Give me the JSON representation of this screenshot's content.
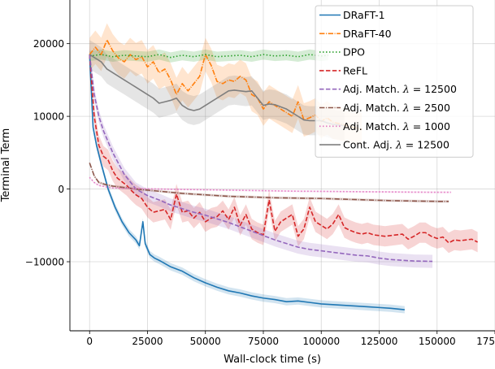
{
  "chart_data": {
    "type": "line",
    "xlabel": "Wall-clock time (s)",
    "ylabel": "Terminal Term",
    "xlim": [
      -8500,
      175000
    ],
    "ylim": [
      -19500,
      26000
    ],
    "xticks": [
      0,
      25000,
      50000,
      75000,
      100000,
      125000,
      150000,
      175000
    ],
    "xtick_labels": [
      "0",
      "25000",
      "50000",
      "75000",
      "100000",
      "125000",
      "150000",
      "175000"
    ],
    "yticks": [
      -10000,
      0,
      10000,
      20000
    ],
    "ytick_labels": [
      "−10000",
      "0",
      "10000",
      "20000"
    ],
    "grid": true,
    "legend_position": "top-right",
    "series": [
      {
        "name": "DRaFT-1",
        "color": "#1f77b4",
        "dash": "solid",
        "x": [
          0,
          1500,
          3000,
          5000,
          8000,
          11000,
          14000,
          17000,
          20000,
          21500,
          23000,
          24000,
          26000,
          28000,
          30000,
          35000,
          40000,
          45000,
          50000,
          55000,
          60000,
          65000,
          70000,
          75000,
          80000,
          85000,
          90000,
          95000,
          100000,
          105000,
          110000,
          115000,
          120000,
          125000,
          130000,
          136000
        ],
        "y": [
          18500,
          8500,
          6000,
          3500,
          0,
          -2500,
          -4500,
          -6000,
          -7000,
          -7800,
          -4500,
          -7500,
          -9000,
          -9500,
          -9800,
          -10700,
          -11300,
          -12200,
          -12900,
          -13500,
          -14000,
          -14300,
          -14700,
          -15000,
          -15200,
          -15500,
          -15400,
          -15600,
          -15800,
          -15900,
          -16000,
          -16100,
          -16200,
          -16300,
          -16400,
          -16600
        ],
        "band": 500
      },
      {
        "name": "DRaFT-40",
        "color": "#ff7f0e",
        "dash": "dashdot",
        "x": [
          0,
          2500,
          5000,
          7500,
          10000,
          12500,
          15000,
          17500,
          20000,
          22500,
          25000,
          27500,
          30000,
          32500,
          35000,
          37500,
          40000,
          42500,
          45000,
          47500,
          50000,
          52500,
          55000,
          57500,
          60000,
          62500,
          65000,
          67500,
          70000,
          72500,
          75000,
          77500,
          80000,
          82500,
          85000,
          87500,
          90000,
          92500,
          95000,
          97500,
          100000,
          102500,
          105000,
          107500,
          110000,
          112500,
          115000,
          117500
        ],
        "y": [
          18500,
          19500,
          18500,
          20500,
          19000,
          18000,
          17500,
          18500,
          17800,
          18200,
          16800,
          17500,
          16000,
          16500,
          15000,
          13000,
          14500,
          13500,
          14500,
          15500,
          18500,
          17000,
          14800,
          14500,
          15000,
          14800,
          15500,
          15000,
          13000,
          12500,
          11000,
          12000,
          11500,
          11000,
          10500,
          10000,
          12000,
          9500,
          9800,
          10200,
          9300,
          9800,
          9200,
          9000,
          8800,
          8600,
          8400,
          8200
        ],
        "band": 2300
      },
      {
        "name": "DPO",
        "color": "#2ca02c",
        "dash": "dotted",
        "x": [
          0,
          5000,
          10000,
          15000,
          20000,
          25000,
          30000,
          35000,
          40000,
          45000,
          50000,
          55000,
          60000,
          65000,
          70000,
          75000,
          80000,
          85000,
          90000,
          95000,
          100000,
          103000
        ],
        "y": [
          18300,
          18500,
          18200,
          18400,
          18300,
          18200,
          18500,
          18100,
          18400,
          18200,
          18500,
          18200,
          18300,
          18400,
          18200,
          18500,
          18300,
          18400,
          18200,
          18500,
          18300,
          18400
        ],
        "band": 700
      },
      {
        "name": "ReFL",
        "color": "#d62728",
        "dash": "dashed",
        "x": [
          0,
          2000,
          4000,
          6000,
          8000,
          10000,
          12000,
          14000,
          16000,
          18000,
          20000,
          22500,
          25000,
          27500,
          30000,
          32500,
          35000,
          37500,
          40000,
          42500,
          45000,
          47500,
          50000,
          52500,
          55000,
          57500,
          60000,
          62500,
          65000,
          67500,
          70000,
          72500,
          75000,
          77500,
          80000,
          82500,
          85000,
          87500,
          90000,
          92500,
          95000,
          97500,
          100000,
          102500,
          105000,
          107500,
          110000,
          112500,
          115000,
          117500,
          120000,
          122500,
          125000,
          127500,
          130000,
          132500,
          135000,
          137500,
          140000,
          142500,
          145000,
          147500,
          150000,
          152500,
          155000,
          157500,
          160000,
          162500,
          165000,
          167500
        ],
        "y": [
          18500,
          10000,
          6000,
          4500,
          4000,
          2500,
          1500,
          1000,
          500,
          -200,
          -800,
          -1300,
          -2500,
          -3200,
          -3000,
          -2800,
          -4200,
          -700,
          -3200,
          -3000,
          -4000,
          -3200,
          -4500,
          -4000,
          -3800,
          -3000,
          -4200,
          -2500,
          -5000,
          -3500,
          -5500,
          -6000,
          -6300,
          -1500,
          -5800,
          -4500,
          -4000,
          -3500,
          -6500,
          -5500,
          -2500,
          -4500,
          -5000,
          -5500,
          -4800,
          -3500,
          -5300,
          -5700,
          -6000,
          -6200,
          -6000,
          -6300,
          -6400,
          -6500,
          -6400,
          -6300,
          -6200,
          -6900,
          -6500,
          -6000,
          -6000,
          -6500,
          -6800,
          -6600,
          -7400,
          -7000,
          -7100,
          -7000,
          -6900,
          -7300
        ],
        "band": 1400
      },
      {
        "name": "Adj. Match. λ = 12500",
        "legend_base": "Adj. Match. ",
        "legend_eq": "12500",
        "color": "#9467bd",
        "dash": "dashed",
        "x": [
          0,
          2000,
          4000,
          6000,
          8000,
          10000,
          12500,
          15000,
          17500,
          20000,
          25000,
          30000,
          35000,
          40000,
          45000,
          50000,
          55000,
          60000,
          65000,
          70000,
          75000,
          80000,
          85000,
          90000,
          95000,
          100000,
          105000,
          110000,
          115000,
          120000,
          125000,
          130000,
          135000,
          140000,
          148000
        ],
        "y": [
          18500,
          13000,
          10000,
          8000,
          6500,
          5000,
          3500,
          2000,
          1000,
          0,
          -900,
          -1500,
          -2200,
          -2700,
          -3200,
          -3600,
          -4100,
          -4600,
          -5200,
          -5800,
          -6400,
          -7000,
          -7500,
          -8000,
          -8300,
          -8500,
          -8700,
          -8900,
          -9100,
          -9200,
          -9500,
          -9700,
          -9800,
          -9900,
          -9950
        ],
        "band": 900
      },
      {
        "name": "Adj. Match. λ = 2500",
        "legend_base": "Adj. Match. ",
        "legend_eq": "2500",
        "color": "#8c564b",
        "dash": "dashdot",
        "x": [
          0,
          2000,
          4000,
          7000,
          10000,
          15000,
          20000,
          30000,
          40000,
          50000,
          60000,
          70000,
          80000,
          90000,
          100000,
          110000,
          120000,
          130000,
          140000,
          150000,
          155000
        ],
        "y": [
          3600,
          1800,
          900,
          600,
          400,
          200,
          0,
          -300,
          -600,
          -800,
          -1000,
          -1100,
          -1200,
          -1250,
          -1300,
          -1400,
          -1500,
          -1600,
          -1650,
          -1700,
          -1700
        ],
        "band": 180
      },
      {
        "name": "Adj. Match. λ = 1000",
        "legend_base": "Adj. Match. ",
        "legend_eq": "1000",
        "color": "#e377c2",
        "dash": "dotted",
        "x": [
          0,
          2000,
          4000,
          7000,
          10000,
          20000,
          30000,
          40000,
          50000,
          60000,
          70000,
          80000,
          90000,
          100000,
          110000,
          120000,
          130000,
          140000,
          150000,
          156000
        ],
        "y": [
          1600,
          900,
          500,
          300,
          150,
          50,
          0,
          -50,
          -100,
          -150,
          -200,
          -250,
          -300,
          -320,
          -350,
          -380,
          -400,
          -430,
          -450,
          -450
        ],
        "band": 120
      },
      {
        "name": "Cont. Adj. λ = 12500",
        "legend_base": "Cont. Adj. ",
        "legend_eq": "12500",
        "color": "#7f7f7f",
        "dash": "solid",
        "x": [
          0,
          2500,
          5000,
          7500,
          10000,
          12500,
          15000,
          17500,
          20000,
          22500,
          25000,
          27500,
          30000,
          32500,
          35000,
          37500,
          40000,
          42500,
          45000,
          47500,
          50000,
          52500,
          55000,
          57500,
          60000,
          62500,
          65000,
          67500,
          70000,
          72500,
          75000,
          77500,
          80000,
          82500,
          85000,
          87500,
          90000,
          92500,
          95000,
          97500,
          100000,
          102500,
          105000,
          107500,
          110000
        ],
        "y": [
          18500,
          18000,
          17500,
          16500,
          16000,
          15500,
          15000,
          14500,
          14000,
          13500,
          13000,
          12500,
          11800,
          12000,
          12200,
          12500,
          11500,
          11000,
          10800,
          11000,
          11500,
          12000,
          12500,
          13000,
          13500,
          13600,
          13500,
          13400,
          13500,
          12500,
          11500,
          11700,
          11600,
          11300,
          11000,
          10500,
          10000,
          9500,
          9400,
          9400,
          9400,
          9100,
          8900,
          8800,
          8700
        ],
        "band": 2000
      }
    ]
  }
}
